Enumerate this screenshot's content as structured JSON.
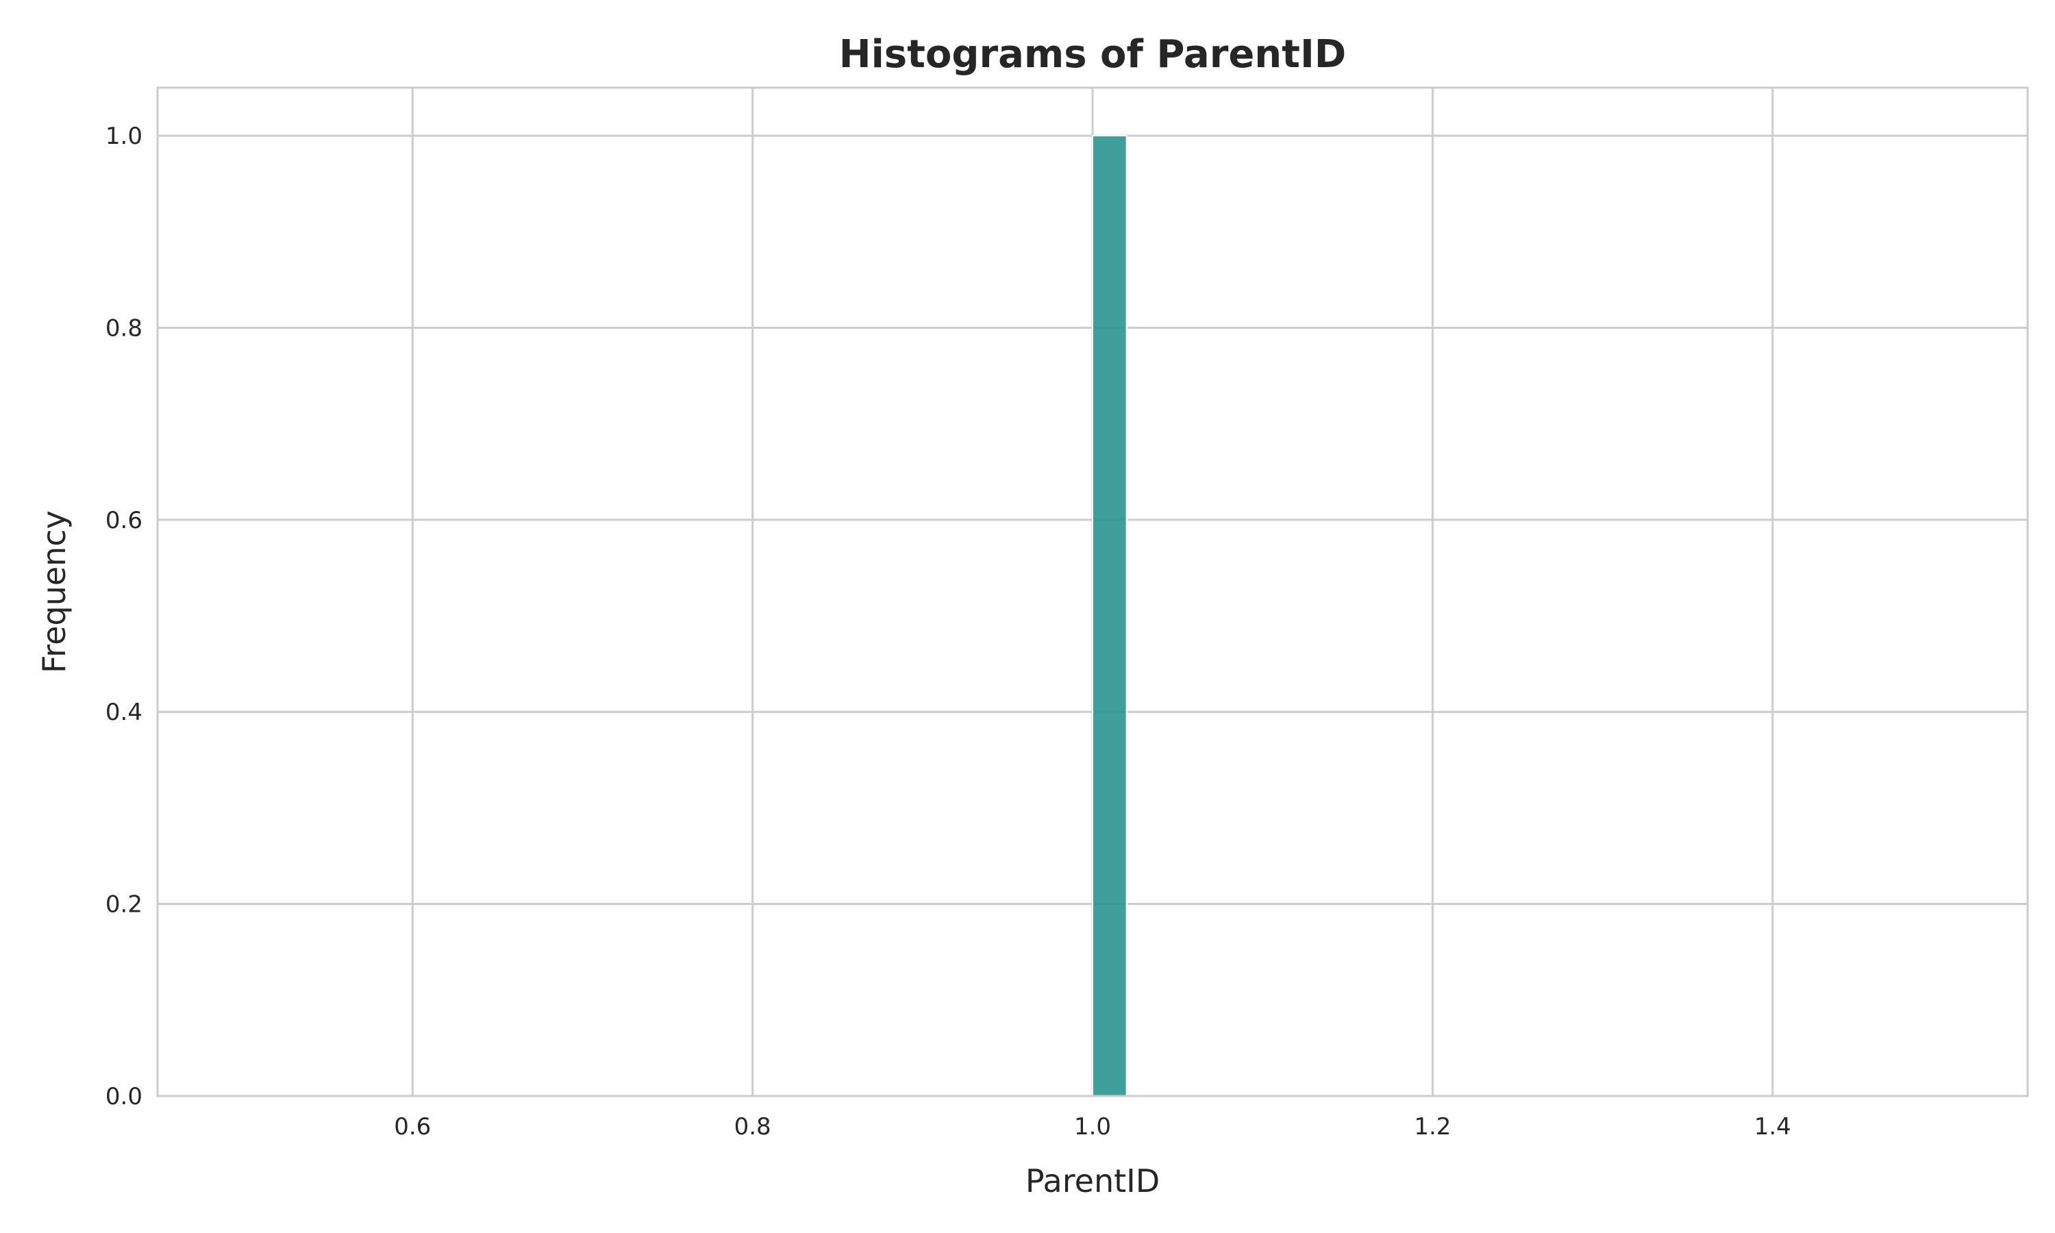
{
  "chart_data": {
    "type": "bar",
    "title": "Histograms of ParentID",
    "xlabel": "ParentID",
    "ylabel": "Frequency",
    "xlim": [
      0.45,
      1.55
    ],
    "ylim": [
      0,
      1.05
    ],
    "xticks": [
      0.6,
      0.8,
      1.0,
      1.2,
      1.4
    ],
    "yticks": [
      0.0,
      0.2,
      0.4,
      0.6,
      0.8,
      1.0
    ],
    "xtick_labels": [
      "0.6",
      "0.8",
      "1.0",
      "1.2",
      "1.4"
    ],
    "ytick_labels": [
      "0.0",
      "0.2",
      "0.4",
      "0.6",
      "0.8",
      "1.0"
    ],
    "bins": [
      {
        "start": 1.0,
        "end": 1.02,
        "count": 1
      }
    ],
    "bar_color": "#2a9590",
    "grid": true
  }
}
